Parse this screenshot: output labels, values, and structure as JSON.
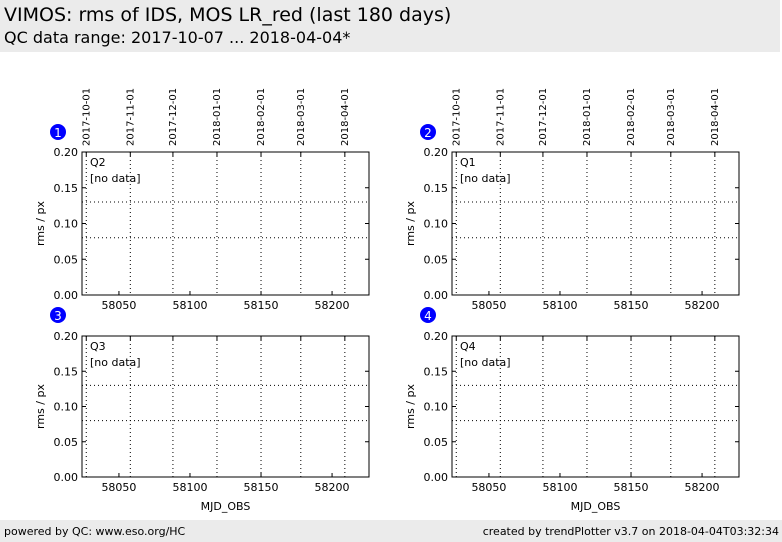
{
  "header": {
    "title": "VIMOS: rms of IDS, MOS LR_red (last 180 days)",
    "subtitle": "QC data range: 2017-10-07 ... 2018-04-04*"
  },
  "footer": {
    "left": "powered by QC: www.eso.org/HC",
    "right": "created by trendPlotter v3.7 on 2018-04-04T03:32:34"
  },
  "colors": {
    "header_bg": "#ebebeb",
    "badge": "#0000ff",
    "axes": "#000000"
  },
  "chart_data": [
    {
      "type": "scatter",
      "panel": "1",
      "quadrant": "Q2",
      "status": "[no data]",
      "ylabel": "rms / px",
      "xlabel": "",
      "xlim": [
        58024,
        58226
      ],
      "ylim": [
        0,
        0.2
      ],
      "xticks": [
        58050,
        58100,
        58150,
        58200
      ],
      "yticks": [
        "0.00",
        "0.05",
        "0.10",
        "0.15",
        "0.20"
      ],
      "date_ticks": [
        {
          "label": "2017-10-01",
          "mjd": 58027
        },
        {
          "label": "2017-11-01",
          "mjd": 58058
        },
        {
          "label": "2017-12-01",
          "mjd": 58088
        },
        {
          "label": "2018-01-01",
          "mjd": 58119
        },
        {
          "label": "2018-02-01",
          "mjd": 58150
        },
        {
          "label": "2018-03-01",
          "mjd": 58178
        },
        {
          "label": "2018-04-01",
          "mjd": 58209
        }
      ],
      "reference_lines": [
        0.08,
        0.13
      ],
      "series": []
    },
    {
      "type": "scatter",
      "panel": "2",
      "quadrant": "Q1",
      "status": "[no data]",
      "ylabel": "rms / px",
      "xlabel": "",
      "xlim": [
        58024,
        58226
      ],
      "ylim": [
        0,
        0.2
      ],
      "xticks": [
        58050,
        58100,
        58150,
        58200
      ],
      "yticks": [
        "0.00",
        "0.05",
        "0.10",
        "0.15",
        "0.20"
      ],
      "date_ticks": [
        {
          "label": "2017-10-01",
          "mjd": 58027
        },
        {
          "label": "2017-11-01",
          "mjd": 58058
        },
        {
          "label": "2017-12-01",
          "mjd": 58088
        },
        {
          "label": "2018-01-01",
          "mjd": 58119
        },
        {
          "label": "2018-02-01",
          "mjd": 58150
        },
        {
          "label": "2018-03-01",
          "mjd": 58178
        },
        {
          "label": "2018-04-01",
          "mjd": 58209
        }
      ],
      "reference_lines": [
        0.08,
        0.13
      ],
      "series": []
    },
    {
      "type": "scatter",
      "panel": "3",
      "quadrant": "Q3",
      "status": "[no data]",
      "ylabel": "rms / px",
      "xlabel": "MJD_OBS",
      "xlim": [
        58024,
        58226
      ],
      "ylim": [
        0,
        0.2
      ],
      "xticks": [
        58050,
        58100,
        58150,
        58200
      ],
      "yticks": [
        "0.00",
        "0.05",
        "0.10",
        "0.15",
        "0.20"
      ],
      "date_ticks": [
        {
          "label": "",
          "mjd": 58027
        },
        {
          "label": "",
          "mjd": 58058
        },
        {
          "label": "",
          "mjd": 58088
        },
        {
          "label": "",
          "mjd": 58119
        },
        {
          "label": "",
          "mjd": 58150
        },
        {
          "label": "",
          "mjd": 58178
        },
        {
          "label": "",
          "mjd": 58209
        }
      ],
      "reference_lines": [
        0.08,
        0.13
      ],
      "series": []
    },
    {
      "type": "scatter",
      "panel": "4",
      "quadrant": "Q4",
      "status": "[no data]",
      "ylabel": "rms / px",
      "xlabel": "MJD_OBS",
      "xlim": [
        58024,
        58226
      ],
      "ylim": [
        0,
        0.2
      ],
      "xticks": [
        58050,
        58100,
        58150,
        58200
      ],
      "yticks": [
        "0.00",
        "0.05",
        "0.10",
        "0.15",
        "0.20"
      ],
      "date_ticks": [
        {
          "label": "",
          "mjd": 58027
        },
        {
          "label": "",
          "mjd": 58058
        },
        {
          "label": "",
          "mjd": 58088
        },
        {
          "label": "",
          "mjd": 58119
        },
        {
          "label": "",
          "mjd": 58150
        },
        {
          "label": "",
          "mjd": 58178
        },
        {
          "label": "",
          "mjd": 58209
        }
      ],
      "reference_lines": [
        0.08,
        0.13
      ],
      "series": []
    }
  ]
}
